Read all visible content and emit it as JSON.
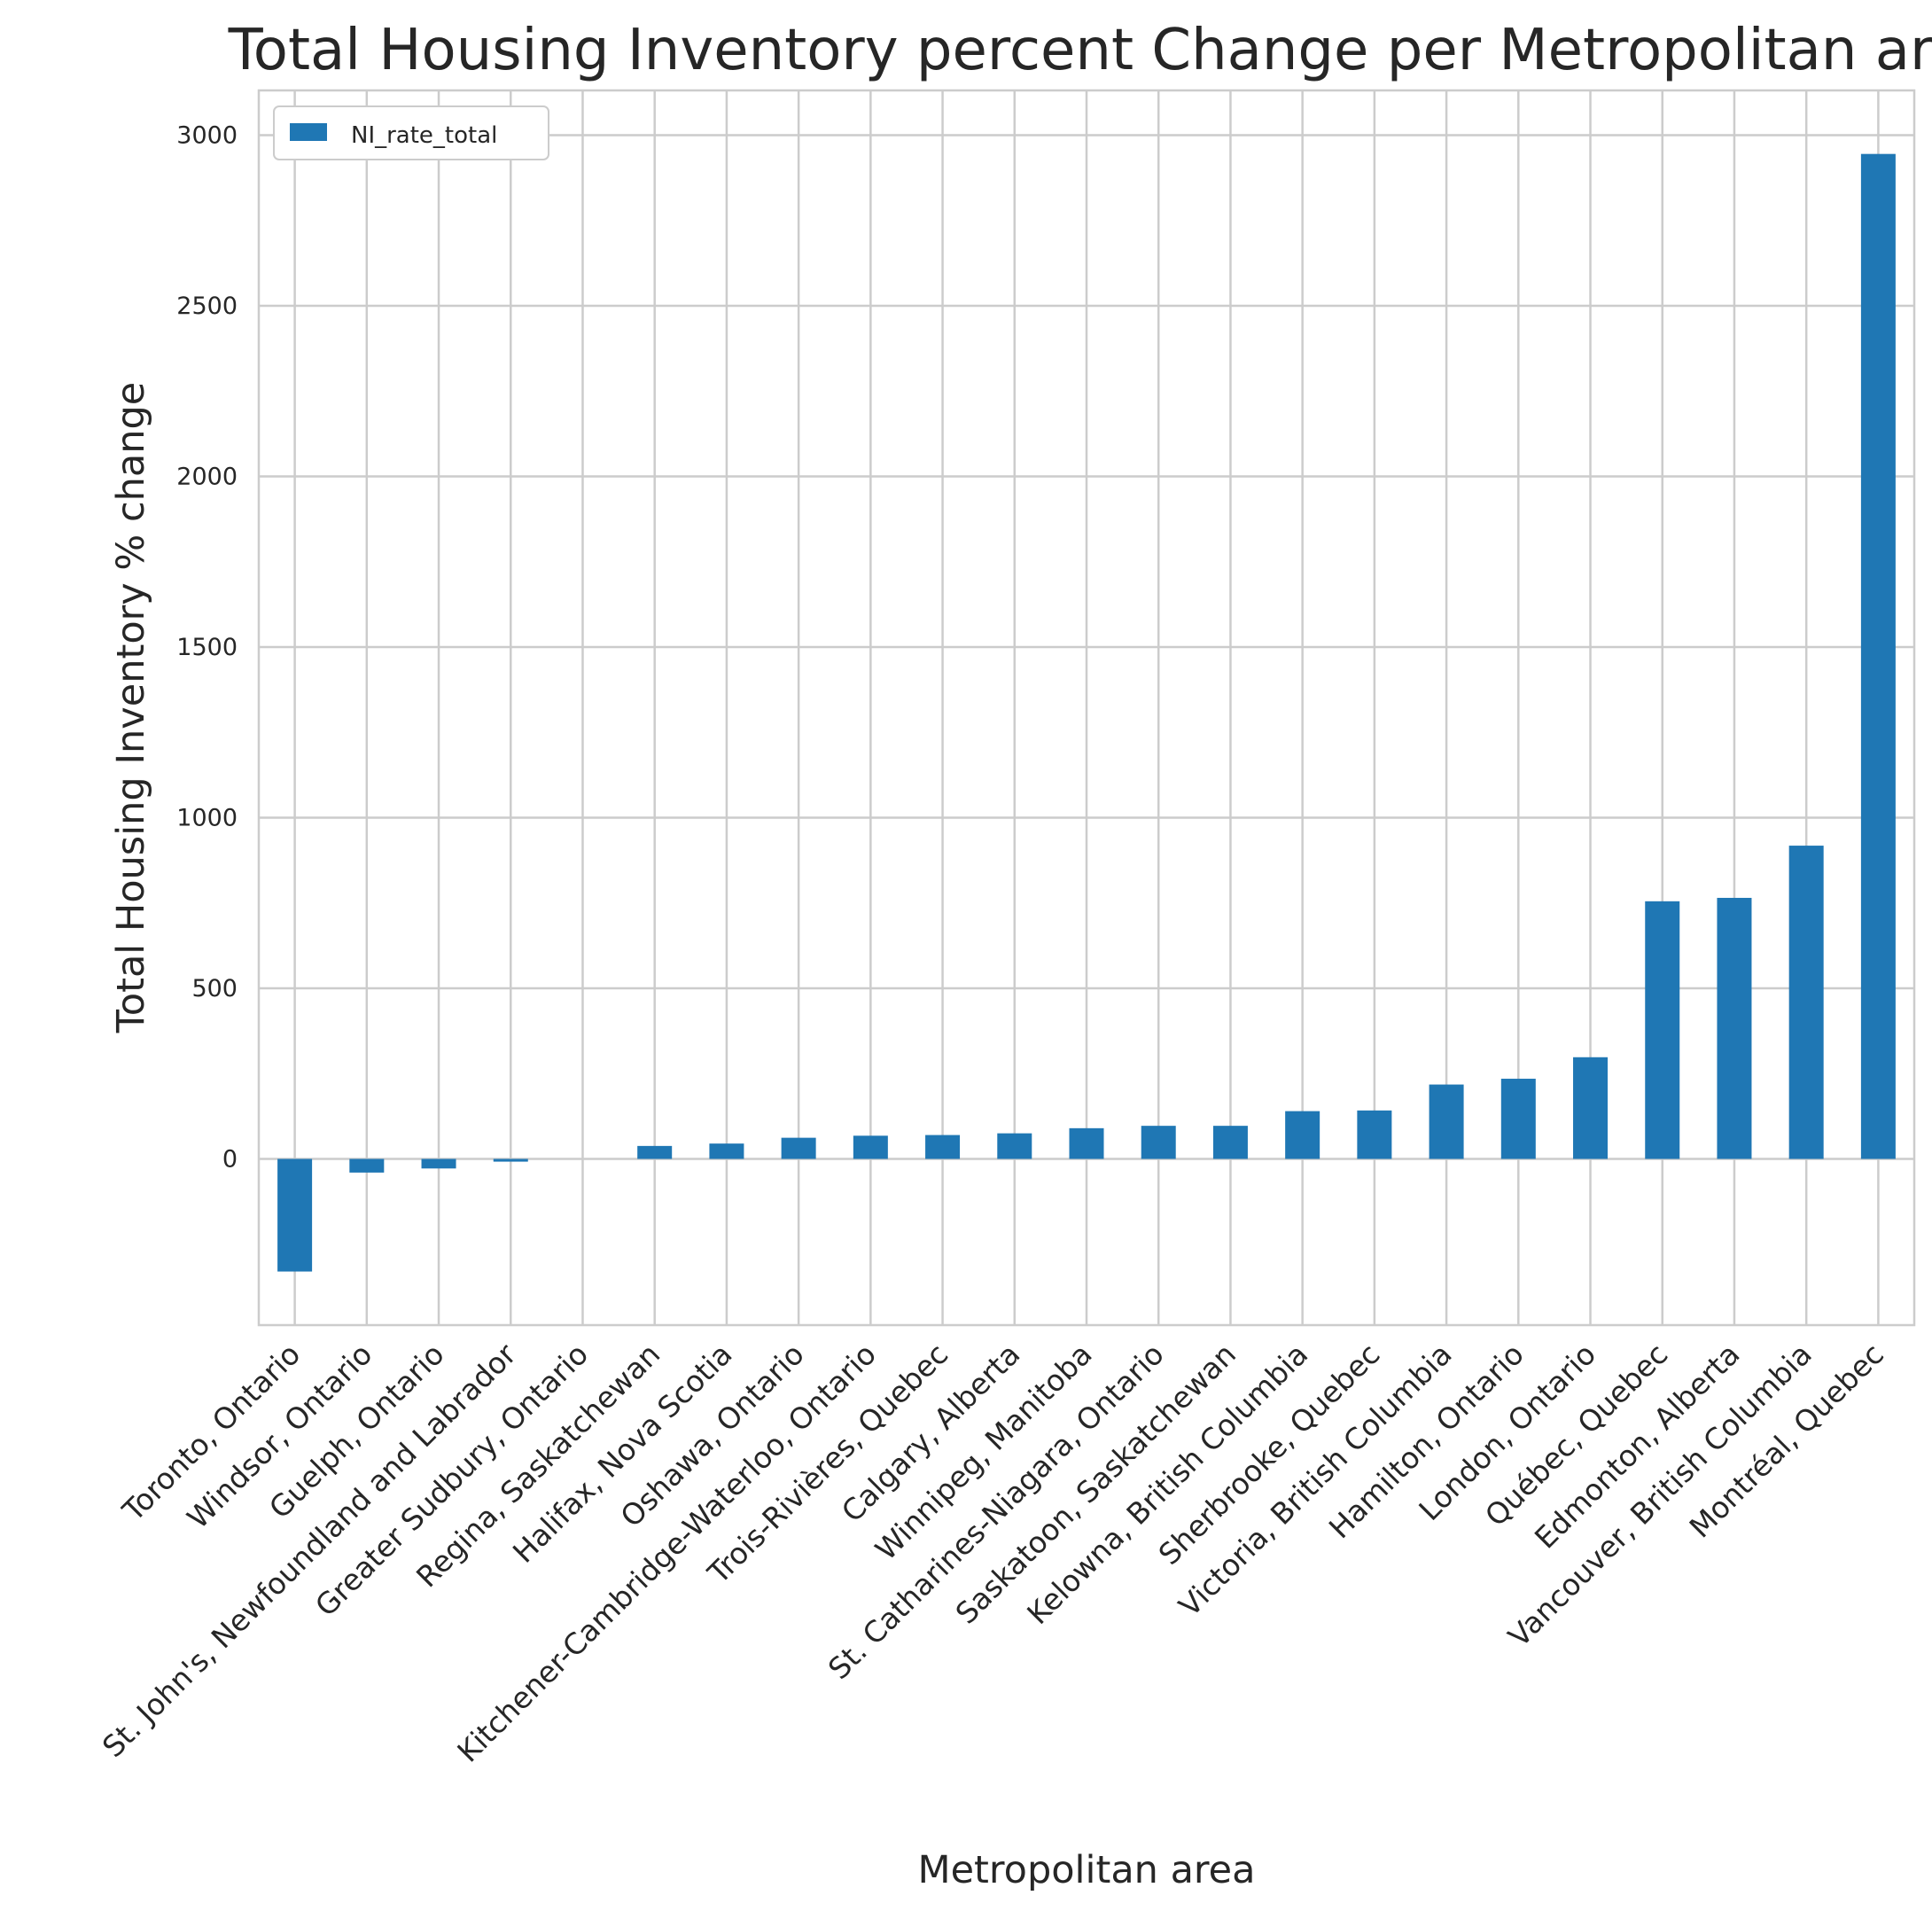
{
  "chart_data": {
    "type": "bar",
    "title": "Total Housing Inventory percent Change per Metropolitan area",
    "xlabel": "Metropolitan area",
    "ylabel": "Total Housing Inventory % change",
    "ylim": [
      -500,
      3100
    ],
    "yticks": [
      0,
      500,
      1000,
      1500,
      2000,
      2500,
      3000
    ],
    "grid": true,
    "legend_position": "top-left",
    "bar_color": "#1f77b4",
    "grid_color": "#cccccc",
    "categories": [
      "Toronto, Ontario",
      "Windsor, Ontario",
      "Guelph, Ontario",
      "St. John's, Newfoundland and Labrador",
      "Greater Sudbury, Ontario",
      "Regina, Saskatchewan",
      "Halifax, Nova Scotia",
      "Oshawa, Ontario",
      "Kitchener-Cambridge-Waterloo, Ontario",
      "Trois-Rivières, Quebec",
      "Calgary, Alberta",
      "Winnipeg, Manitoba",
      "St. Catharines-Niagara, Ontario",
      "Saskatoon, Saskatchewan",
      "Kelowna, British Columbia",
      "Sherbrooke, Quebec",
      "Victoria, British Columbia",
      "Hamilton, Ontario",
      "London, Ontario",
      "Québec, Quebec",
      "Edmonton, Alberta",
      "Vancouver, British Columbia",
      "Montréal, Quebec"
    ],
    "series": [
      {
        "name": "NI_rate_total",
        "values": [
          -330,
          -40,
          -28,
          -8,
          0,
          38,
          45,
          62,
          68,
          70,
          75,
          90,
          97,
          97,
          140,
          142,
          218,
          235,
          298,
          755,
          765,
          918,
          2945
        ]
      }
    ]
  }
}
